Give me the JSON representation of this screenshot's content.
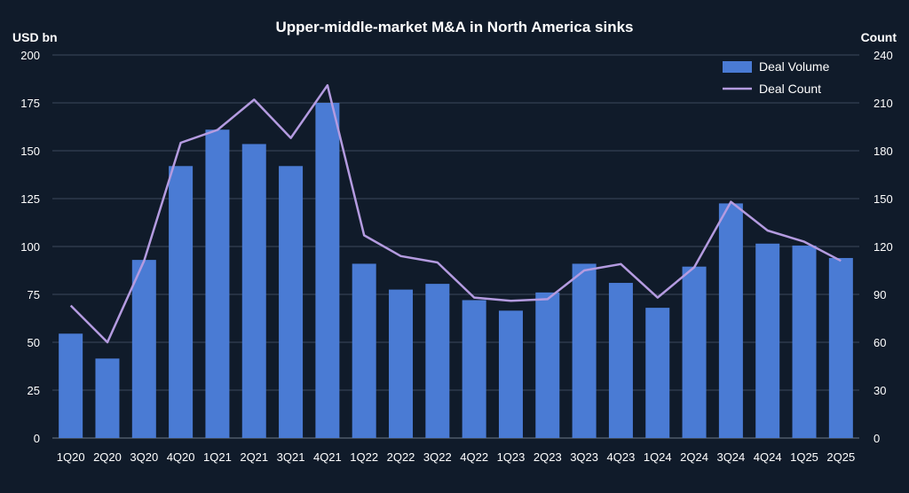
{
  "chart_data": {
    "type": "bar+line",
    "title": "Upper-middle-market M&A in North America sinks",
    "y_left_label": "USD bn",
    "y_right_label": "Count",
    "y_left_lim": [
      0,
      200
    ],
    "y_right_lim": [
      0,
      240
    ],
    "y_left_ticks": [
      "0",
      "25",
      "50",
      "75",
      "100",
      "125",
      "150",
      "175",
      "200"
    ],
    "y_right_ticks": [
      "0",
      "30",
      "60",
      "90",
      "120",
      "150",
      "180",
      "210",
      "240"
    ],
    "grid": true,
    "legend_position": "top-right",
    "categories": [
      "1Q20",
      "2Q20",
      "3Q20",
      "4Q20",
      "1Q21",
      "2Q21",
      "3Q21",
      "4Q21",
      "1Q22",
      "2Q22",
      "3Q22",
      "4Q22",
      "1Q23",
      "2Q23",
      "3Q23",
      "4Q23",
      "1Q24",
      "2Q24",
      "3Q24",
      "4Q24",
      "1Q25",
      "2Q25"
    ],
    "series": [
      {
        "name": "Deal Volume",
        "type": "bar",
        "axis": "left",
        "color": "#4a7bd4",
        "values": [
          54.5,
          41.5,
          93,
          142,
          161,
          153.5,
          142,
          175,
          91,
          77.5,
          80.5,
          72,
          66.5,
          76,
          91,
          81,
          68,
          89.5,
          122.5,
          101.5,
          100.5,
          94
        ]
      },
      {
        "name": "Deal Count",
        "type": "line",
        "axis": "right",
        "color": "#b49be0",
        "values": [
          83,
          60,
          111,
          185,
          193,
          212,
          188,
          221,
          127,
          114,
          110,
          88,
          86,
          87,
          105,
          109,
          88,
          107,
          148,
          130,
          123,
          111
        ]
      }
    ]
  }
}
